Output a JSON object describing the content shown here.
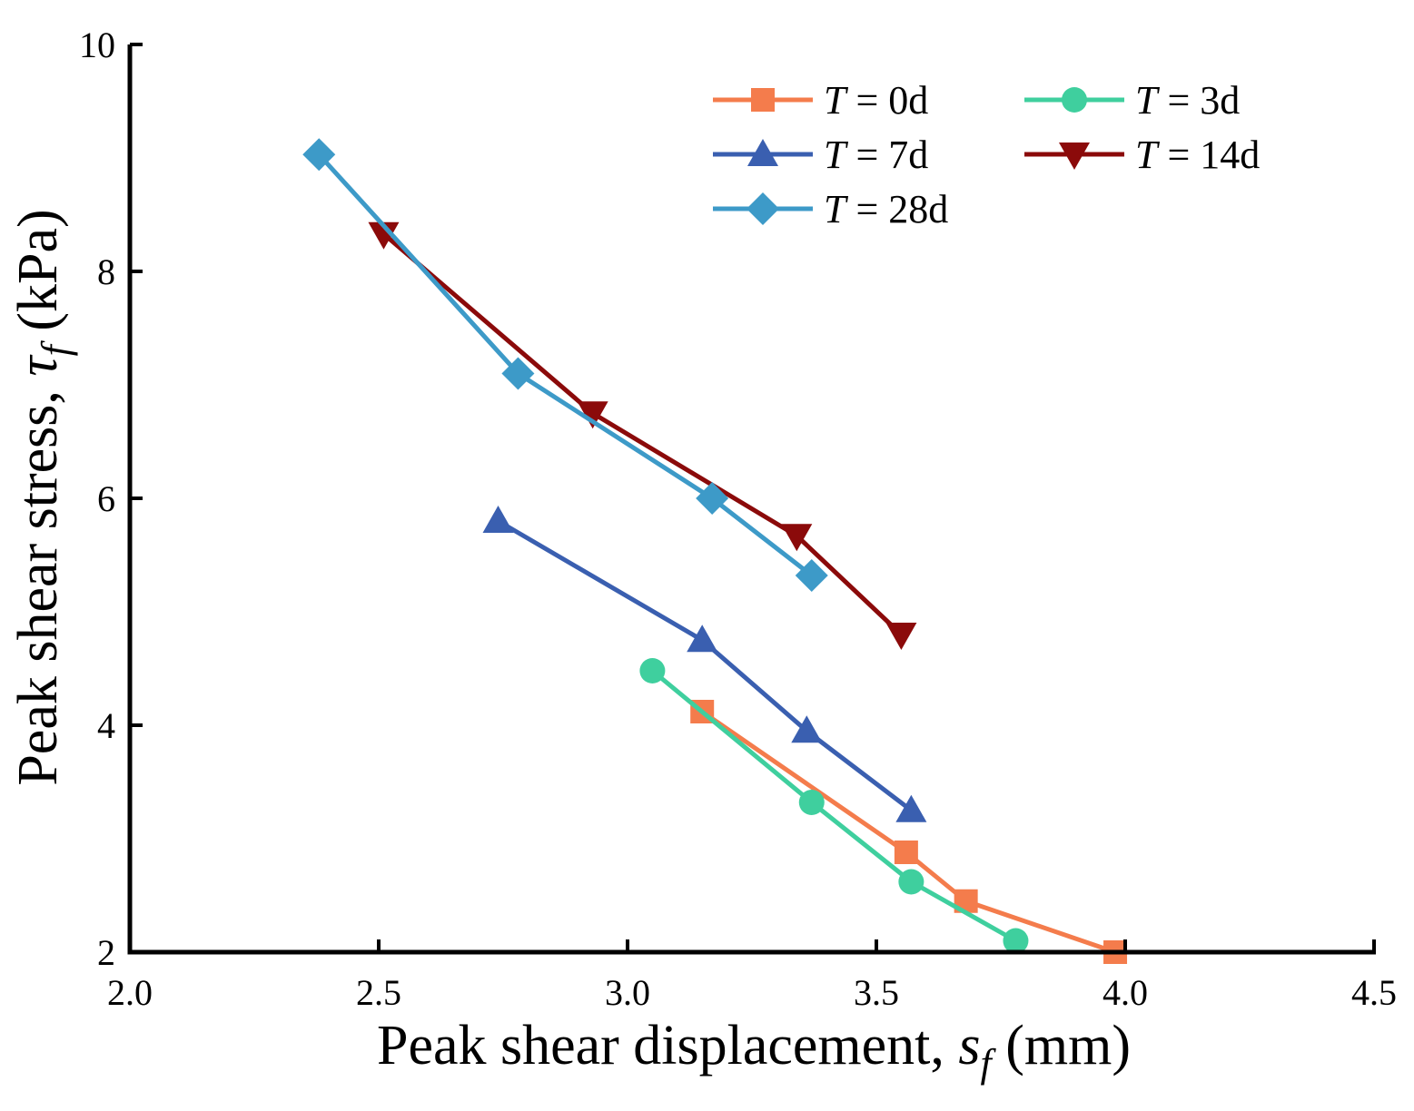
{
  "chart_data": {
    "type": "line",
    "title": "",
    "xlabel": {
      "prefix": "Peak shear displacement, ",
      "symbol": "s",
      "subscript": "f",
      "suffix": " (mm)"
    },
    "ylabel": {
      "prefix": "Peak shear stress, ",
      "symbol": "τ",
      "subscript": "f",
      "suffix": " (kPa)"
    },
    "xlim": [
      2.0,
      4.5
    ],
    "ylim": [
      2,
      10
    ],
    "xticks": [
      "2.0",
      "2.5",
      "3.0",
      "3.5",
      "4.0",
      "4.5"
    ],
    "yticks": [
      "2",
      "4",
      "6",
      "8",
      "10"
    ],
    "grid": false,
    "legend_position": "top-right",
    "series": [
      {
        "name": "T = 0d",
        "var": "T",
        "rest": " = 0d",
        "color": "#f47c4c",
        "marker": "square",
        "x": [
          3.15,
          3.56,
          3.68,
          3.98
        ],
        "y": [
          4.12,
          2.88,
          2.45,
          2.0
        ]
      },
      {
        "name": "T = 3d",
        "var": "T",
        "rest": " = 3d",
        "color": "#3fcf9e",
        "marker": "circle",
        "x": [
          3.05,
          3.37,
          3.57,
          3.78
        ],
        "y": [
          4.48,
          3.32,
          2.62,
          2.1
        ]
      },
      {
        "name": "T = 7d",
        "var": "T",
        "rest": " = 7d",
        "color": "#3a5fb0",
        "marker": "triangle-up",
        "x": [
          2.74,
          3.15,
          3.36,
          3.57
        ],
        "y": [
          5.8,
          4.75,
          3.95,
          3.25
        ]
      },
      {
        "name": "T = 14d",
        "var": "T",
        "rest": " = 14d",
        "color": "#8b0a0a",
        "marker": "triangle-down",
        "x": [
          2.51,
          2.93,
          3.34,
          3.55
        ],
        "y": [
          8.33,
          6.75,
          5.67,
          4.8
        ]
      },
      {
        "name": "T = 28d",
        "var": "T",
        "rest": " = 28d",
        "color": "#3d9ac8",
        "marker": "diamond",
        "x": [
          2.38,
          2.78,
          3.17,
          3.37
        ],
        "y": [
          9.03,
          7.1,
          6.0,
          5.32
        ]
      }
    ]
  }
}
